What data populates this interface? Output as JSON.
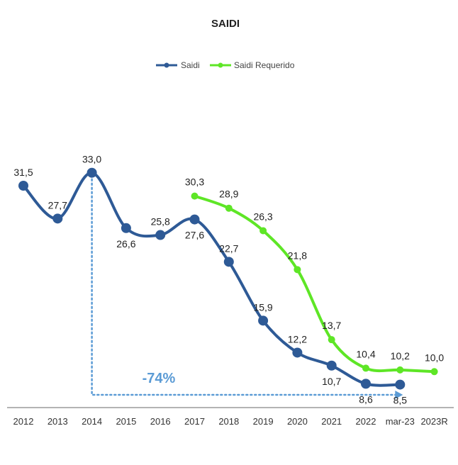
{
  "chart_data": {
    "type": "line",
    "title": "SAIDI",
    "categories": [
      "2012",
      "2013",
      "2014",
      "2015",
      "2016",
      "2017",
      "2018",
      "2019",
      "2020",
      "2021",
      "2022",
      "mar-23",
      "2023R"
    ],
    "series": [
      {
        "name": "Saidi",
        "color": "#2e5a96",
        "values": [
          31.5,
          27.7,
          33.0,
          26.6,
          25.8,
          27.6,
          22.7,
          15.9,
          12.2,
          10.7,
          8.6,
          8.5,
          null
        ],
        "labels": [
          "31,5",
          "27,7",
          "33,0",
          "26,6",
          "25,8",
          "27,6",
          "22,7",
          "15,9",
          "12,2",
          "10,7",
          "8,6",
          "8,5",
          ""
        ]
      },
      {
        "name": "Saidi Requerido",
        "color": "#5ee626",
        "values": [
          null,
          null,
          null,
          null,
          null,
          30.3,
          28.9,
          26.3,
          21.8,
          13.7,
          10.4,
          10.2,
          10.0
        ],
        "labels": [
          "",
          "",
          "",
          "",
          "",
          "30,3",
          "28,9",
          "26,3",
          "21,8",
          "13,7",
          "10,4",
          "10,2",
          "10,0"
        ]
      }
    ],
    "annotation": {
      "text": "-74%",
      "from_category": "2014",
      "to_category": "mar-23",
      "color": "#5b9bd5"
    },
    "xlabel": "",
    "ylabel": "",
    "ylim": [
      0,
      40
    ],
    "grid": false,
    "legend_position": "top-center"
  }
}
